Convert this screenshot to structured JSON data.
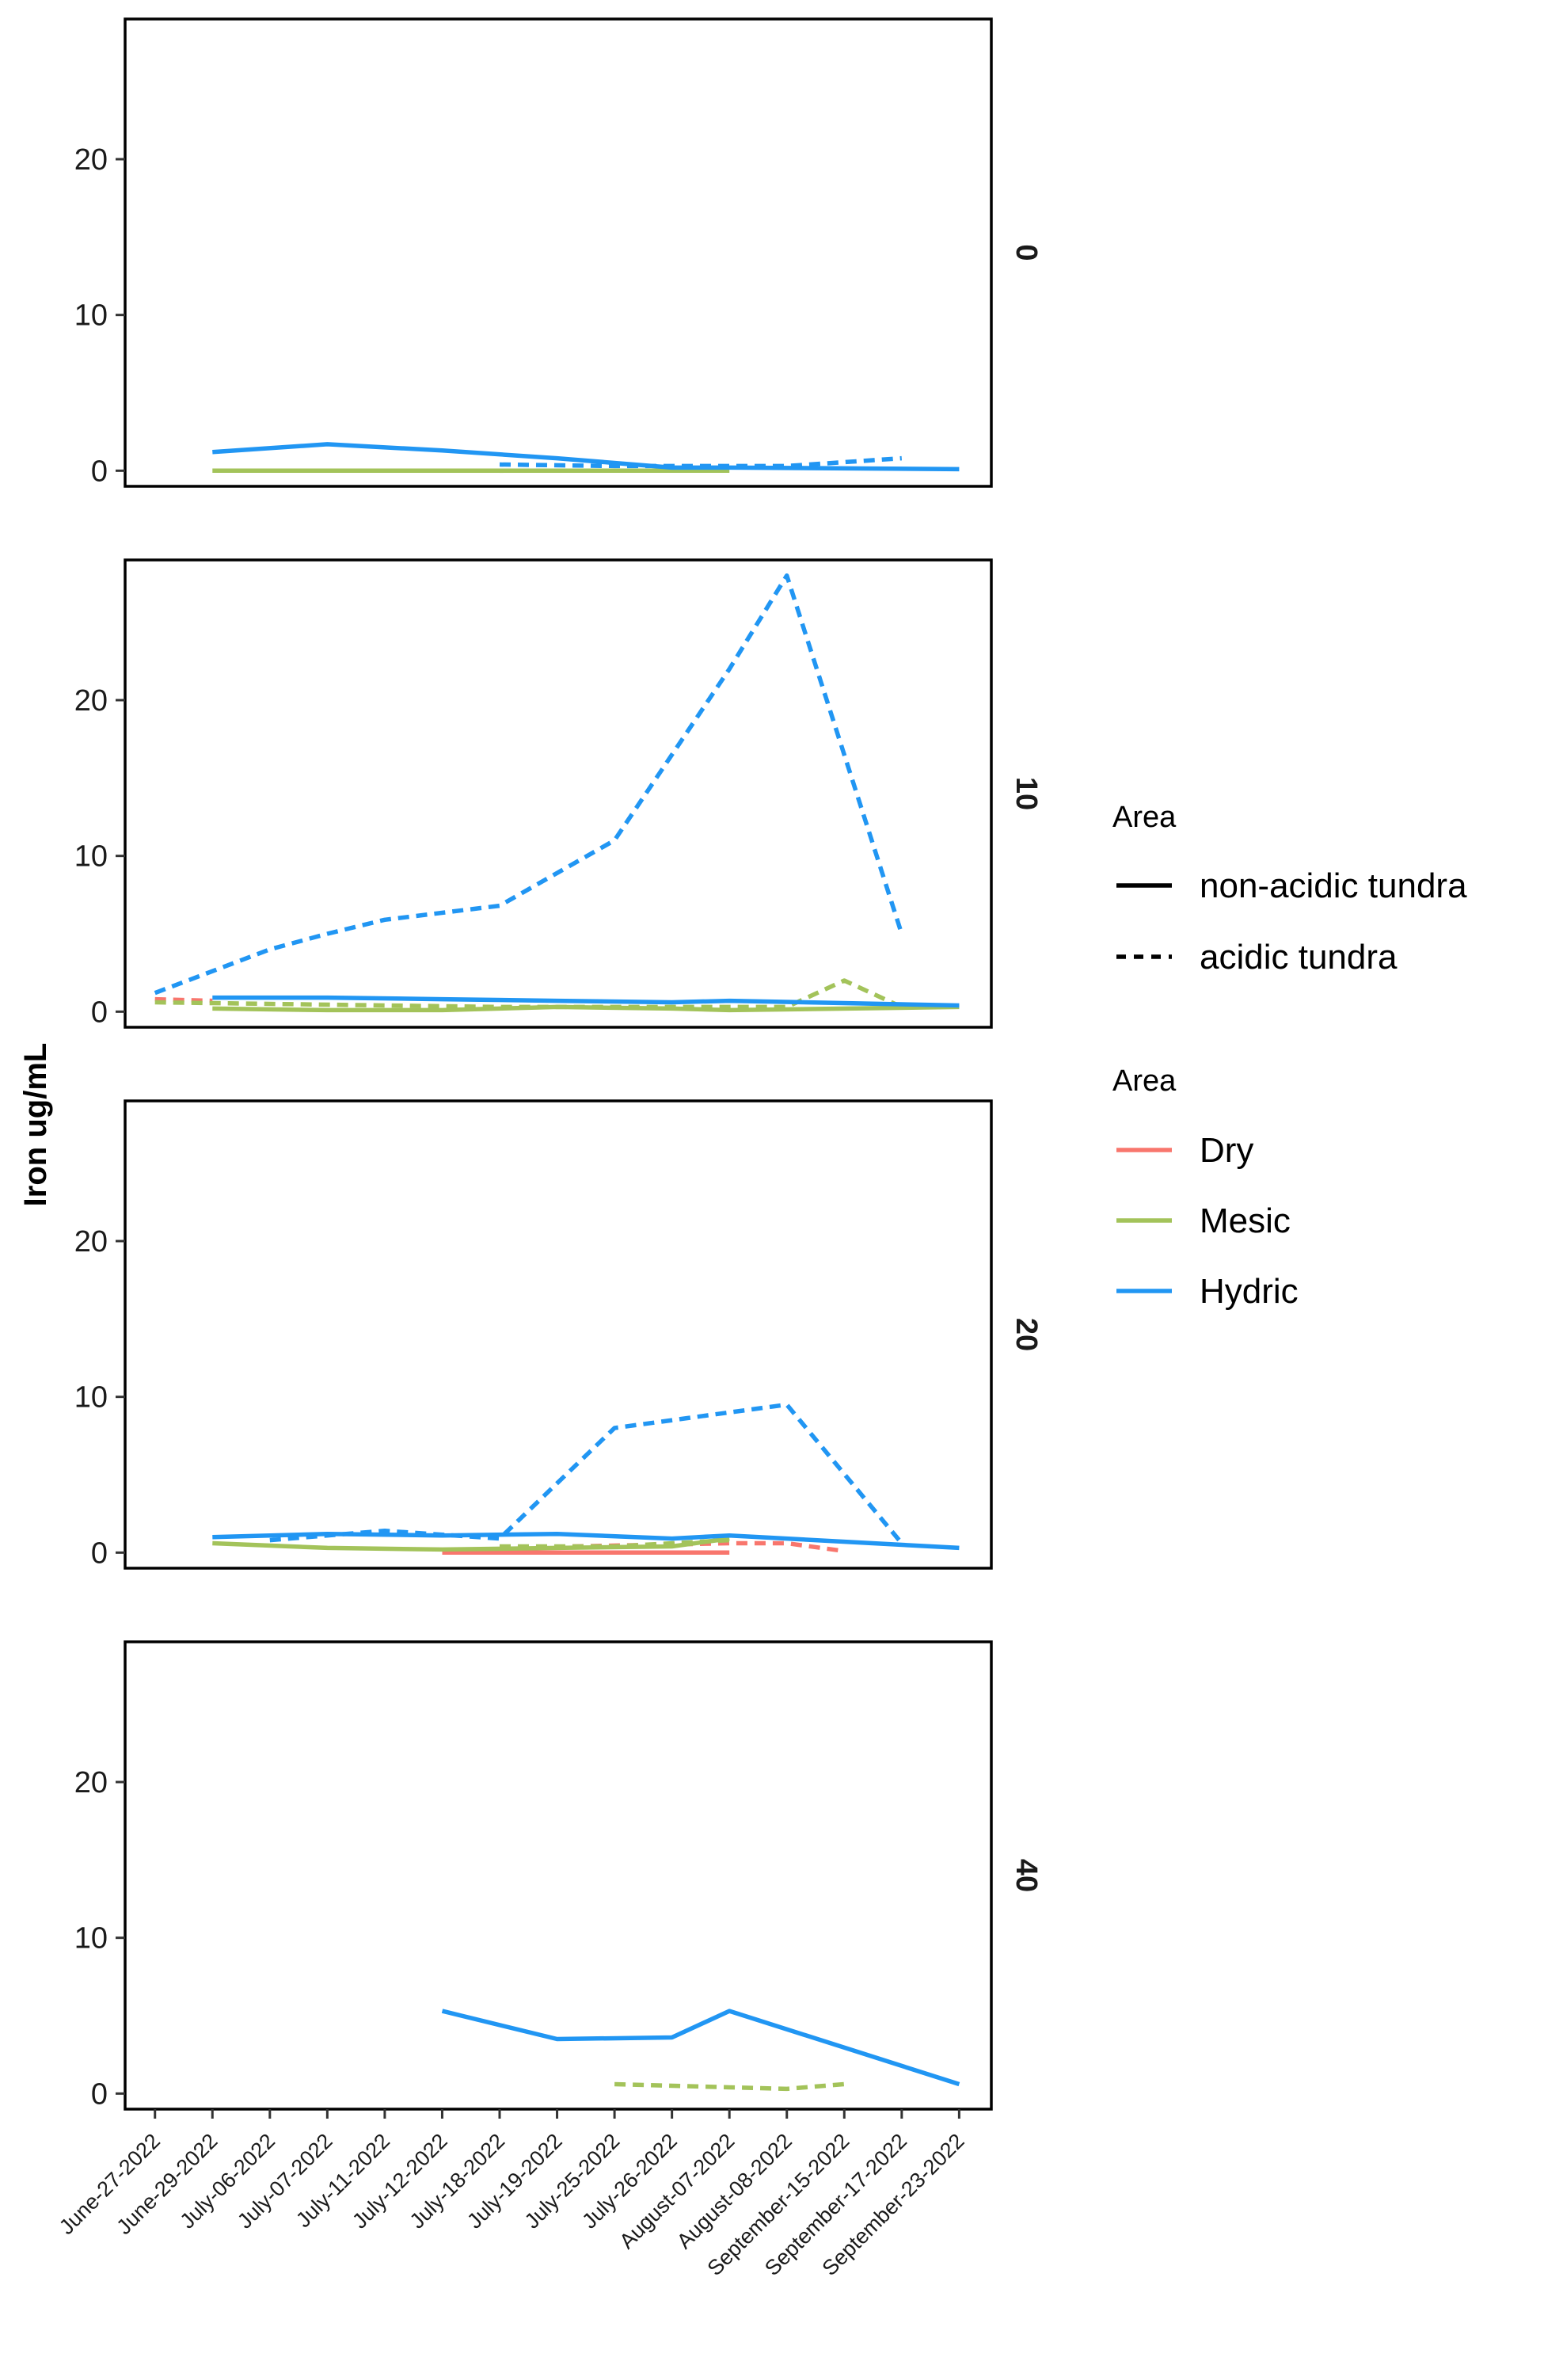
{
  "chart_data": {
    "type": "line",
    "ylabel": "Iron ug/mL",
    "xlabel": "",
    "ylim": [
      -1,
      29
    ],
    "yticks": [
      0,
      10,
      20
    ],
    "grid": false,
    "legend_position": "right",
    "categories": [
      "June-27-2022",
      "June-29-2022",
      "July-06-2022",
      "July-07-2022",
      "July-11-2022",
      "July-12-2022",
      "July-18-2022",
      "July-19-2022",
      "July-25-2022",
      "July-26-2022",
      "August-07-2022",
      "August-08-2022",
      "September-15-2022",
      "September-17-2022",
      "September-23-2022"
    ],
    "facet_variable_values": [
      "0",
      "10",
      "20",
      "40"
    ],
    "legends": [
      {
        "title": "Area",
        "kind": "linetype",
        "entries": [
          {
            "label": "non-acidic tundra",
            "dash": "solid"
          },
          {
            "label": "acidic tundra",
            "dash": "dashed"
          }
        ]
      },
      {
        "title": "Area",
        "kind": "color",
        "entries": [
          {
            "label": "Dry",
            "color": "#f8766d"
          },
          {
            "label": "Mesic",
            "color": "#a3c35a"
          },
          {
            "label": "Hydric",
            "color": "#2196f3"
          }
        ]
      }
    ],
    "panels": [
      {
        "facet": "0",
        "series": [
          {
            "color": "Mesic",
            "linetype": "non-acidic tundra",
            "points": [
              [
                "June-29-2022",
                0.0
              ],
              [
                "July-12-2022",
                0.0
              ],
              [
                "August-07-2022",
                0.0
              ]
            ]
          },
          {
            "color": "Mesic",
            "linetype": "acidic tundra",
            "points": [
              [
                "July-18-2022",
                0.0
              ],
              [
                "August-07-2022",
                0.0
              ]
            ]
          },
          {
            "color": "Hydric",
            "linetype": "non-acidic tundra",
            "points": [
              [
                "June-29-2022",
                1.2
              ],
              [
                "July-07-2022",
                1.7
              ],
              [
                "July-12-2022",
                1.3
              ],
              [
                "July-19-2022",
                0.8
              ],
              [
                "July-26-2022",
                0.2
              ],
              [
                "August-07-2022",
                0.2
              ],
              [
                "September-23-2022",
                0.1
              ]
            ]
          },
          {
            "color": "Hydric",
            "linetype": "acidic tundra",
            "points": [
              [
                "July-18-2022",
                0.4
              ],
              [
                "July-25-2022",
                0.3
              ],
              [
                "August-08-2022",
                0.3
              ],
              [
                "September-17-2022",
                0.8
              ]
            ]
          }
        ]
      },
      {
        "facet": "10",
        "series": [
          {
            "color": "Dry",
            "linetype": "acidic tundra",
            "points": [
              [
                "June-27-2022",
                0.8
              ],
              [
                "June-29-2022",
                0.7
              ]
            ]
          },
          {
            "color": "Mesic",
            "linetype": "non-acidic tundra",
            "points": [
              [
                "June-29-2022",
                0.2
              ],
              [
                "July-07-2022",
                0.1
              ],
              [
                "July-12-2022",
                0.1
              ],
              [
                "July-19-2022",
                0.3
              ],
              [
                "July-26-2022",
                0.2
              ],
              [
                "August-07-2022",
                0.1
              ],
              [
                "September-23-2022",
                0.3
              ]
            ]
          },
          {
            "color": "Mesic",
            "linetype": "acidic tundra",
            "points": [
              [
                "June-27-2022",
                0.6
              ],
              [
                "July-06-2022",
                0.5
              ],
              [
                "July-18-2022",
                0.3
              ],
              [
                "August-08-2022",
                0.3
              ],
              [
                "September-15-2022",
                2.0
              ],
              [
                "September-17-2022",
                0.3
              ]
            ]
          },
          {
            "color": "Hydric",
            "linetype": "non-acidic tundra",
            "points": [
              [
                "June-29-2022",
                0.9
              ],
              [
                "July-07-2022",
                0.9
              ],
              [
                "July-12-2022",
                0.8
              ],
              [
                "July-19-2022",
                0.7
              ],
              [
                "July-26-2022",
                0.6
              ],
              [
                "August-07-2022",
                0.7
              ],
              [
                "September-23-2022",
                0.4
              ]
            ]
          },
          {
            "color": "Hydric",
            "linetype": "acidic tundra",
            "points": [
              [
                "June-27-2022",
                1.2
              ],
              [
                "July-06-2022",
                4.0
              ],
              [
                "July-07-2022",
                5.0
              ],
              [
                "July-11-2022",
                5.9
              ],
              [
                "July-18-2022",
                6.8
              ],
              [
                "July-25-2022",
                11.0
              ],
              [
                "August-07-2022",
                22.0
              ],
              [
                "August-08-2022",
                28.0
              ],
              [
                "September-17-2022",
                5.0
              ]
            ]
          }
        ]
      },
      {
        "facet": "20",
        "series": [
          {
            "color": "Dry",
            "linetype": "non-acidic tundra",
            "points": [
              [
                "July-12-2022",
                0.0
              ],
              [
                "August-07-2022",
                0.0
              ]
            ]
          },
          {
            "color": "Dry",
            "linetype": "acidic tundra",
            "points": [
              [
                "July-18-2022",
                0.3
              ],
              [
                "August-07-2022",
                0.6
              ],
              [
                "August-08-2022",
                0.6
              ],
              [
                "September-15-2022",
                0.1
              ]
            ]
          },
          {
            "color": "Mesic",
            "linetype": "non-acidic tundra",
            "points": [
              [
                "June-29-2022",
                0.6
              ],
              [
                "July-07-2022",
                0.3
              ],
              [
                "July-12-2022",
                0.2
              ],
              [
                "July-19-2022",
                0.3
              ],
              [
                "July-26-2022",
                0.4
              ],
              [
                "August-07-2022",
                0.9
              ]
            ]
          },
          {
            "color": "Mesic",
            "linetype": "acidic tundra",
            "points": [
              [
                "July-18-2022",
                0.4
              ],
              [
                "July-25-2022",
                0.4
              ],
              [
                "August-07-2022",
                0.8
              ]
            ]
          },
          {
            "color": "Hydric",
            "linetype": "non-acidic tundra",
            "points": [
              [
                "June-29-2022",
                1.0
              ],
              [
                "July-07-2022",
                1.2
              ],
              [
                "July-12-2022",
                1.1
              ],
              [
                "July-19-2022",
                1.2
              ],
              [
                "July-26-2022",
                0.9
              ],
              [
                "August-07-2022",
                1.1
              ],
              [
                "September-23-2022",
                0.3
              ]
            ]
          },
          {
            "color": "Hydric",
            "linetype": "acidic tundra",
            "points": [
              [
                "July-06-2022",
                0.8
              ],
              [
                "July-11-2022",
                1.4
              ],
              [
                "July-18-2022",
                0.9
              ],
              [
                "July-25-2022",
                8.0
              ],
              [
                "August-07-2022",
                9.0
              ],
              [
                "August-08-2022",
                9.5
              ],
              [
                "September-17-2022",
                0.6
              ]
            ]
          }
        ]
      },
      {
        "facet": "40",
        "series": [
          {
            "color": "Mesic",
            "linetype": "acidic tundra",
            "points": [
              [
                "July-25-2022",
                0.6
              ],
              [
                "August-07-2022",
                0.4
              ],
              [
                "August-08-2022",
                0.3
              ],
              [
                "September-15-2022",
                0.6
              ]
            ]
          },
          {
            "color": "Hydric",
            "linetype": "non-acidic tundra",
            "points": [
              [
                "July-12-2022",
                5.3
              ],
              [
                "July-19-2022",
                3.5
              ],
              [
                "July-26-2022",
                3.6
              ],
              [
                "August-07-2022",
                5.3
              ],
              [
                "September-23-2022",
                0.6
              ]
            ]
          }
        ]
      }
    ]
  }
}
